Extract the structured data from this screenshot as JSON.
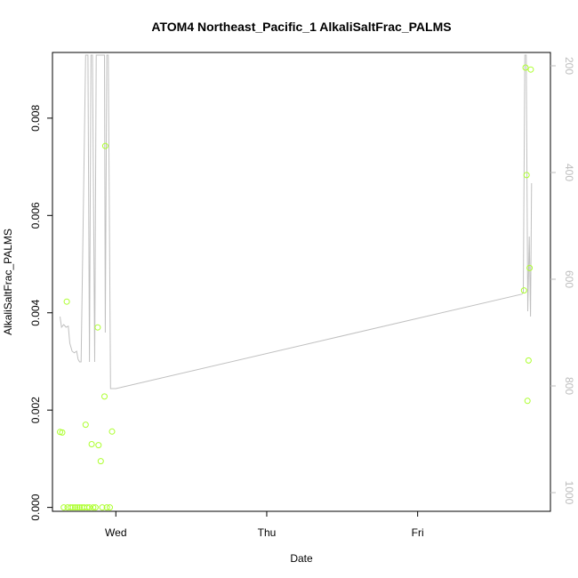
{
  "chart_data": {
    "type": "scatter",
    "title": "ATOM4 Northeast_Pacific_1 AlkaliSaltFrac_PALMS",
    "xlabel": "Date",
    "ylabel": "AlkaliSaltFrac_PALMS",
    "x_ticks": [
      {
        "label": "Wed",
        "day": 0
      },
      {
        "label": "Thu",
        "day": 1
      },
      {
        "label": "Fri",
        "day": 2
      }
    ],
    "x_range_days": [
      -0.42,
      2.88
    ],
    "ylim": [
      -8e-05,
      0.00935
    ],
    "y_ticks": [
      0.0,
      0.002,
      0.004,
      0.006,
      0.008
    ],
    "y_tick_labels": [
      "0.000",
      "0.002",
      "0.004",
      "0.006",
      "0.008"
    ],
    "y2_axis": {
      "range": [
        1035,
        175
      ],
      "ticks": [
        200,
        400,
        600,
        800,
        1000
      ],
      "labels": [
        "200",
        "400",
        "600",
        "800",
        "1000"
      ],
      "color": "#bdbdbd"
    },
    "series": [
      {
        "kind": "points",
        "color": "#adff2f",
        "points": [
          {
            "x": -0.37,
            "y": 0.00155
          },
          {
            "x": -0.355,
            "y": 0.00154
          },
          {
            "x": -0.345,
            "y": 0.0
          },
          {
            "x": -0.325,
            "y": 0.00423
          },
          {
            "x": -0.32,
            "y": 0.0
          },
          {
            "x": -0.3,
            "y": 0.0
          },
          {
            "x": -0.285,
            "y": 0.0
          },
          {
            "x": -0.27,
            "y": 0.0
          },
          {
            "x": -0.255,
            "y": 0.0
          },
          {
            "x": -0.24,
            "y": 0.0
          },
          {
            "x": -0.225,
            "y": 0.0
          },
          {
            "x": -0.21,
            "y": 0.0
          },
          {
            "x": -0.2,
            "y": 0.0017
          },
          {
            "x": -0.19,
            "y": 0.0
          },
          {
            "x": -0.175,
            "y": 0.0
          },
          {
            "x": -0.16,
            "y": 0.0013
          },
          {
            "x": -0.15,
            "y": 0.0
          },
          {
            "x": -0.135,
            "y": 0.0
          },
          {
            "x": -0.12,
            "y": 0.0037
          },
          {
            "x": -0.115,
            "y": 0.00128
          },
          {
            "x": -0.1,
            "y": 0.00095
          },
          {
            "x": -0.09,
            "y": 0.0
          },
          {
            "x": -0.075,
            "y": 0.00228
          },
          {
            "x": -0.07,
            "y": 0.00743
          },
          {
            "x": -0.06,
            "y": 0.0
          },
          {
            "x": -0.04,
            "y": 0.0
          },
          {
            "x": -0.025,
            "y": 0.00156
          },
          {
            "x": 2.705,
            "y": 0.00446
          },
          {
            "x": 2.715,
            "y": 0.00904
          },
          {
            "x": 2.722,
            "y": 0.00683
          },
          {
            "x": 2.728,
            "y": 0.00219
          },
          {
            "x": 2.735,
            "y": 0.00302
          },
          {
            "x": 2.742,
            "y": 0.00492
          },
          {
            "x": 2.75,
            "y": 0.009
          }
        ]
      },
      {
        "kind": "line",
        "color": "#c0c0c0",
        "axis": "right",
        "points": [
          {
            "x": -0.37,
            "y": 670
          },
          {
            "x": -0.36,
            "y": 690
          },
          {
            "x": -0.345,
            "y": 685
          },
          {
            "x": -0.33,
            "y": 690
          },
          {
            "x": -0.315,
            "y": 688
          },
          {
            "x": -0.305,
            "y": 720
          },
          {
            "x": -0.29,
            "y": 735
          },
          {
            "x": -0.275,
            "y": 738
          },
          {
            "x": -0.26,
            "y": 735
          },
          {
            "x": -0.25,
            "y": 750
          },
          {
            "x": -0.24,
            "y": 755
          },
          {
            "x": -0.23,
            "y": 755
          },
          {
            "x": -0.2,
            "y": 180
          },
          {
            "x": -0.185,
            "y": 180
          },
          {
            "x": -0.175,
            "y": 755
          },
          {
            "x": -0.165,
            "y": 180
          },
          {
            "x": -0.155,
            "y": 180
          },
          {
            "x": -0.14,
            "y": 755
          },
          {
            "x": -0.13,
            "y": 180
          },
          {
            "x": -0.12,
            "y": 180
          },
          {
            "x": -0.105,
            "y": 180
          },
          {
            "x": -0.09,
            "y": 180
          },
          {
            "x": -0.075,
            "y": 180
          },
          {
            "x": -0.07,
            "y": 700
          },
          {
            "x": -0.06,
            "y": 180
          },
          {
            "x": -0.05,
            "y": 180
          },
          {
            "x": -0.035,
            "y": 805
          },
          {
            "x": 0.0,
            "y": 805
          },
          {
            "x": 2.69,
            "y": 628
          },
          {
            "x": 2.7,
            "y": 625
          },
          {
            "x": 2.71,
            "y": 180
          },
          {
            "x": 2.72,
            "y": 180
          },
          {
            "x": 2.73,
            "y": 660
          },
          {
            "x": 2.74,
            "y": 520
          },
          {
            "x": 2.748,
            "y": 670
          },
          {
            "x": 2.755,
            "y": 420
          }
        ]
      }
    ],
    "grid": false,
    "legend": "none"
  }
}
